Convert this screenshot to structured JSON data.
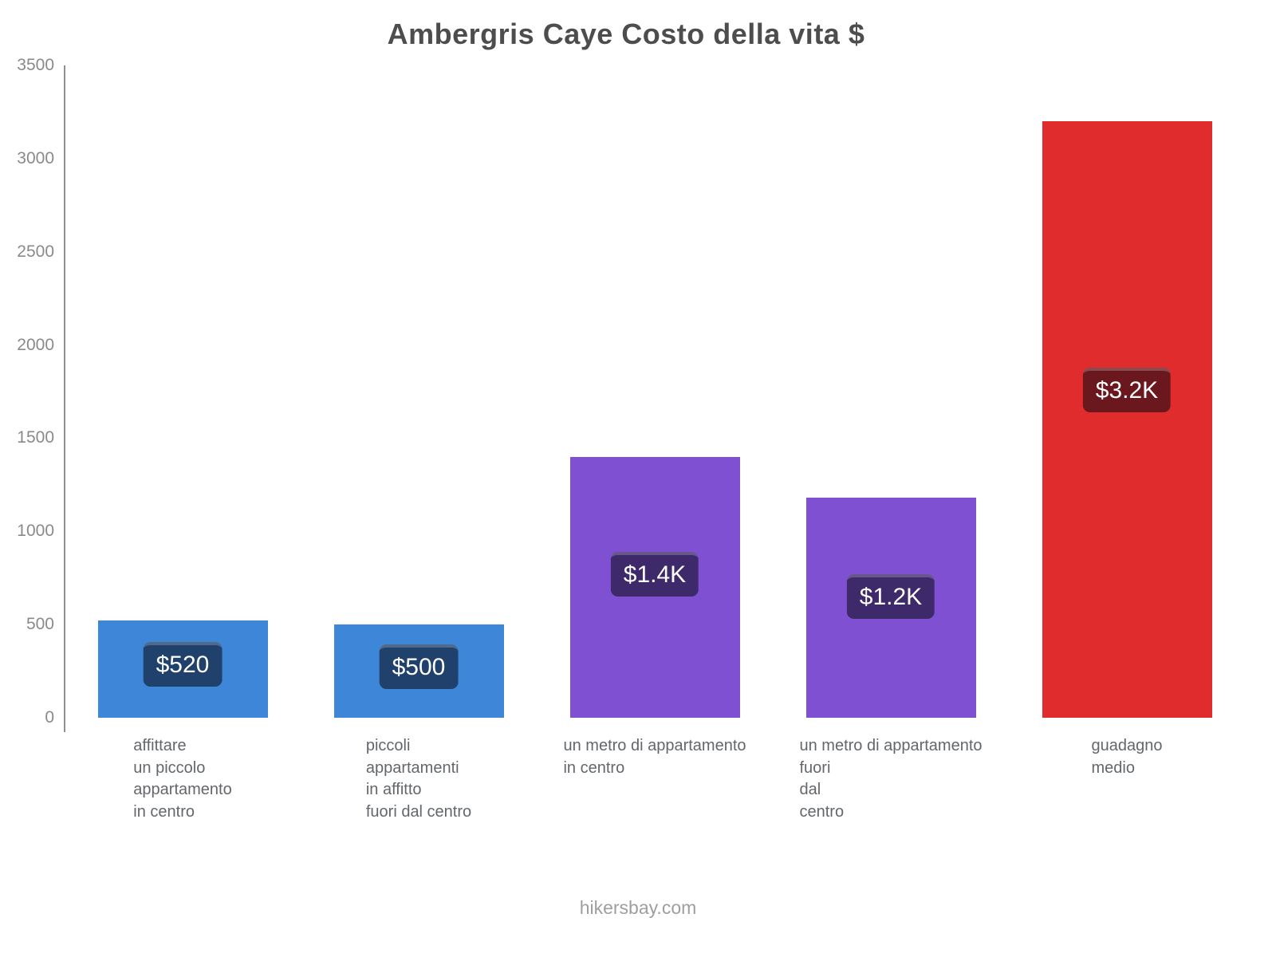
{
  "title": "Ambergris Caye Costo della vita $",
  "footer": "hikersbay.com",
  "chart_data": {
    "type": "bar",
    "title": "Ambergris Caye Costo della vita $",
    "xlabel": "",
    "ylabel": "",
    "ylim": [
      0,
      3500
    ],
    "yticks": [
      0,
      500,
      1000,
      1500,
      2000,
      2500,
      3000,
      3500
    ],
    "grid": false,
    "legend": "none",
    "categories": [
      "affittare un piccolo appartamento in centro",
      "piccoli appartamenti in affitto fuori dal centro",
      "un metro di appartamento in centro",
      "un metro di appartamento fuori dal centro",
      "guadagno medio"
    ],
    "category_lines": [
      [
        "affittare",
        "un piccolo",
        "appartamento",
        "in centro"
      ],
      [
        "piccoli",
        "appartamenti",
        "in affitto",
        "fuori dal centro"
      ],
      [
        "un metro di appartamento",
        "in centro"
      ],
      [
        "un metro di appartamento",
        "fuori",
        "dal",
        "centro"
      ],
      [
        "guadagno",
        "medio"
      ]
    ],
    "values": [
      520,
      500,
      1400,
      1180,
      3200
    ],
    "value_labels": [
      "$520",
      "$500",
      "$1.4K",
      "$1.2K",
      "$3.2K"
    ],
    "bar_colors": [
      "#3d86d8",
      "#3d86d8",
      "#7f50d2",
      "#7f50d2",
      "#e02c2c"
    ],
    "axis_color": "#909090",
    "tick_label_color": "#8a8a8a",
    "title_color": "#4d4d4d",
    "category_label_color": "#63676c"
  }
}
